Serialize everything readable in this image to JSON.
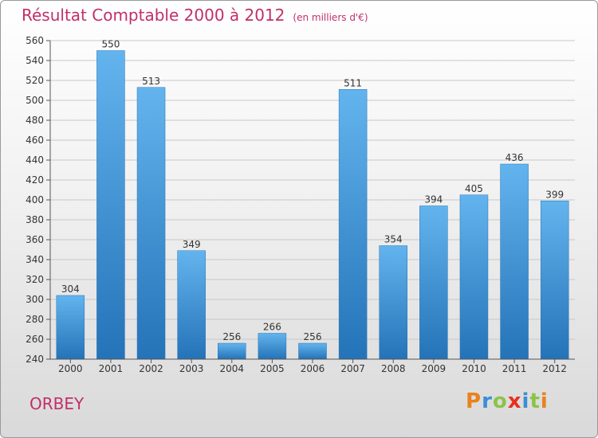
{
  "title": "Résultat Comptable 2000 à 2012",
  "subtitle": "(en milliers d'€)",
  "commune": "ORBEY",
  "logo": {
    "text": "Proxiti",
    "colors": [
      "#e8821e",
      "#3a8fd4",
      "#8bc34a",
      "#e8301e",
      "#3a8fd4",
      "#8bc34a",
      "#e8821e"
    ]
  },
  "colors": {
    "bar": "#3b8fd6",
    "bar_light": "#63b4ee",
    "bar_dark": "#2473b8",
    "grid": "#c8c8c8",
    "axis": "#555555",
    "title": "#c0306a"
  },
  "chart_data": {
    "type": "bar",
    "title": "Résultat Comptable 2000 à 2012",
    "subtitle": "(en milliers d'€)",
    "categories": [
      "2000",
      "2001",
      "2002",
      "2003",
      "2004",
      "2005",
      "2006",
      "2007",
      "2008",
      "2009",
      "2010",
      "2011",
      "2012"
    ],
    "values": [
      304,
      550,
      513,
      349,
      256,
      266,
      256,
      511,
      354,
      394,
      405,
      436,
      399
    ],
    "ylim": [
      240,
      560
    ],
    "yticks": [
      240,
      260,
      280,
      300,
      320,
      340,
      360,
      380,
      400,
      420,
      440,
      460,
      480,
      500,
      520,
      540,
      560
    ],
    "xlabel": "",
    "ylabel": "",
    "grid": true,
    "legend": "none"
  }
}
